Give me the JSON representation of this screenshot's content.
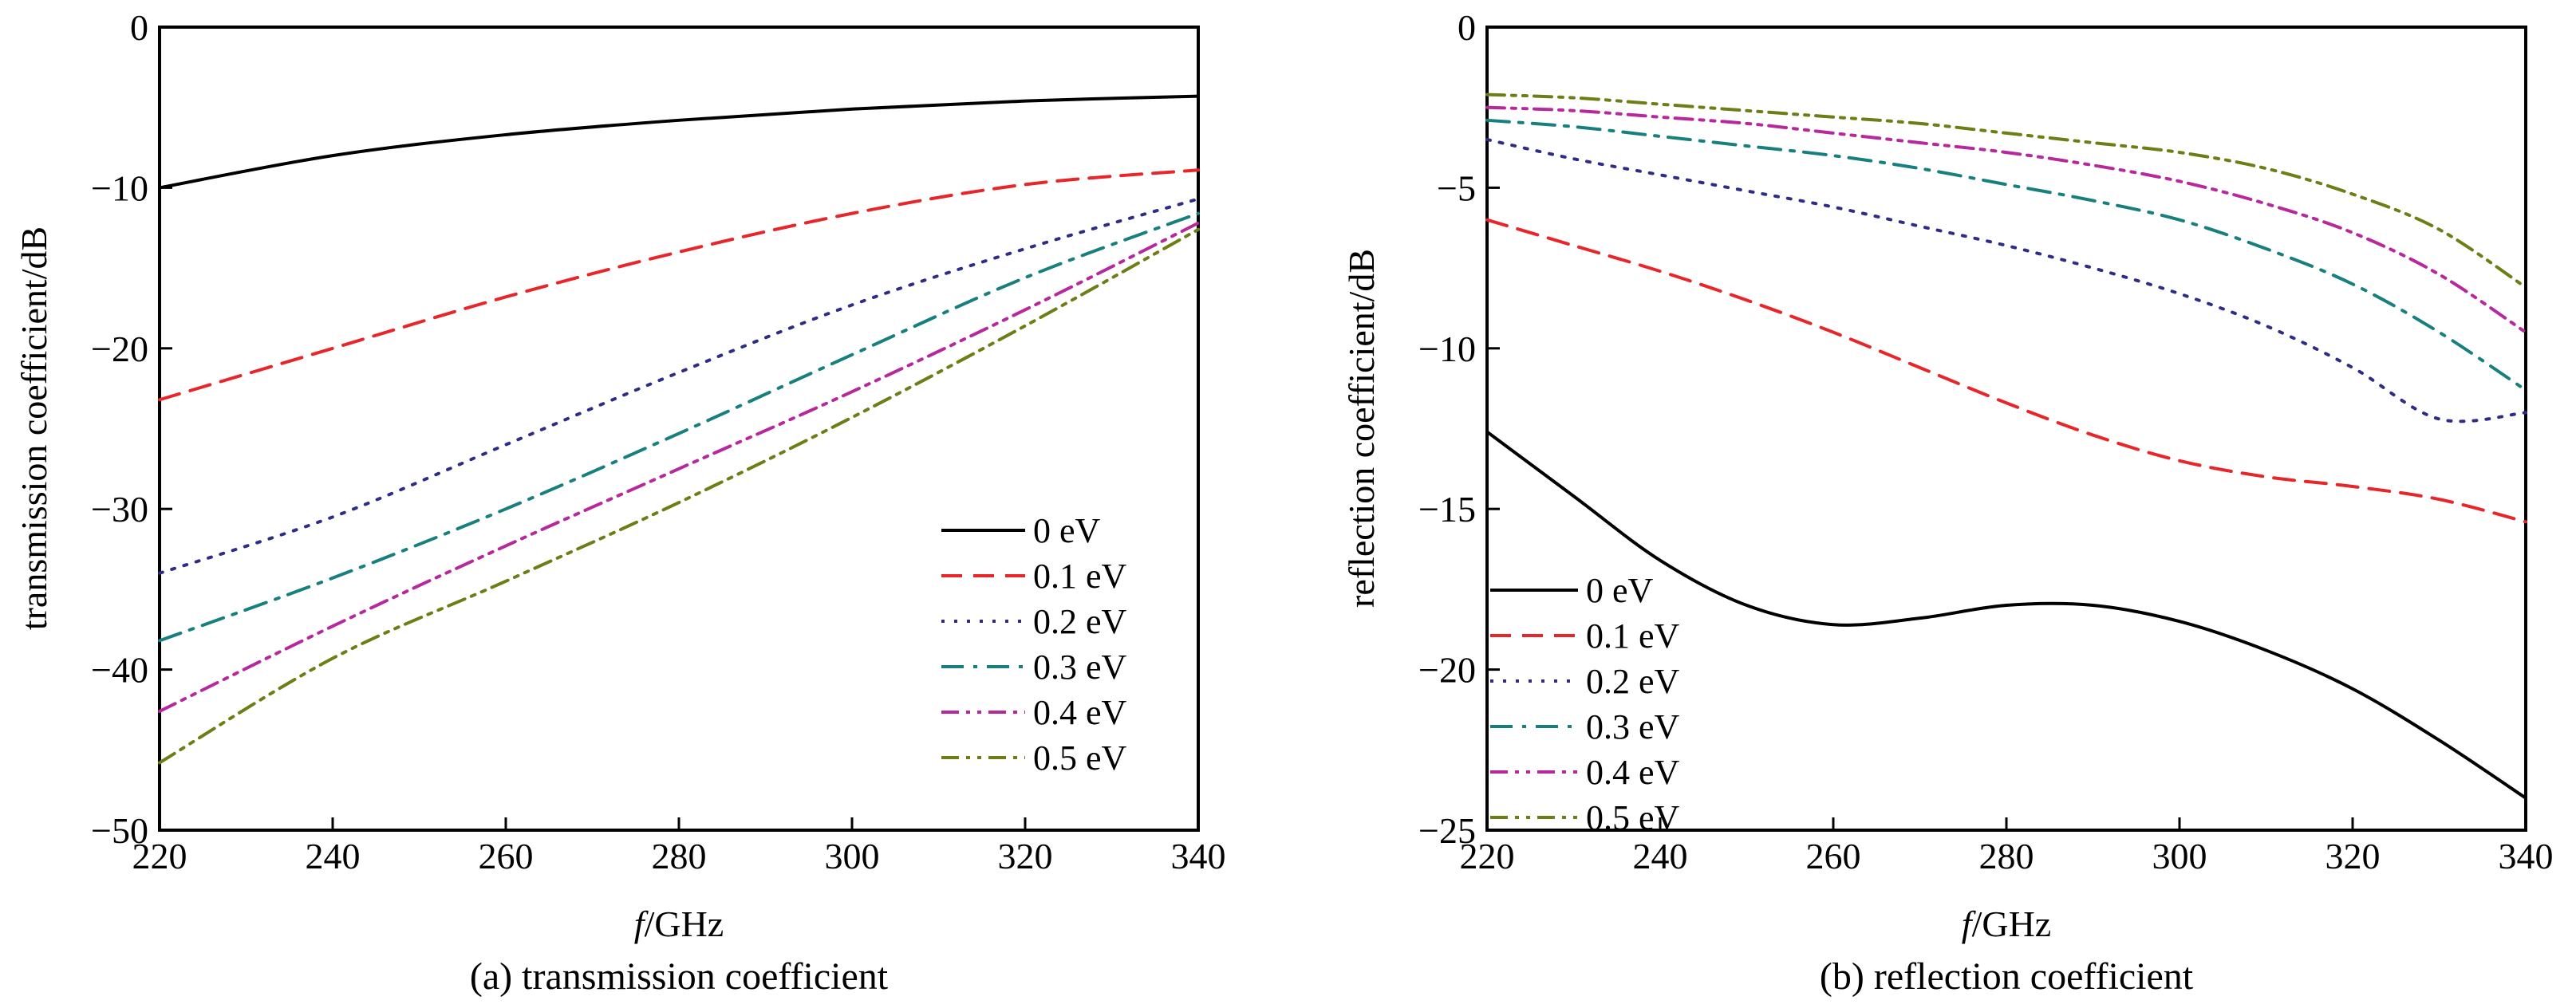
{
  "figure": {
    "captions": [
      "(a) transmission coefficient",
      "(b) reflection coefficient"
    ]
  },
  "chart_data": [
    {
      "type": "line",
      "caption": "(a) transmission coefficient",
      "xlabel_italic": "f",
      "xlabel_rest": "/GHz",
      "ylabel": "transmission coefficient/dB",
      "xlim": [
        220,
        340
      ],
      "ylim": [
        -50,
        0
      ],
      "xticks": [
        220,
        240,
        260,
        280,
        300,
        320,
        340
      ],
      "yticks": [
        0,
        -10,
        -20,
        -30,
        -40,
        -50
      ],
      "ytick_labels": [
        "0",
        "−10",
        "−20",
        "−30",
        "−40",
        "−50"
      ],
      "grid": false,
      "legend_position": "lower-right",
      "x": [
        220,
        240,
        260,
        280,
        300,
        320,
        340
      ],
      "series": [
        {
          "name": "0 eV",
          "color": "#000000",
          "dash": "solid",
          "values": [
            -10.0,
            -8.0,
            -6.7,
            -5.8,
            -5.1,
            -4.6,
            -4.3
          ]
        },
        {
          "name": "0.1 eV",
          "color": "#e8262a",
          "dash": "dash",
          "values": [
            -23.2,
            -20.0,
            -16.8,
            -14.0,
            -11.6,
            -9.8,
            -8.9
          ]
        },
        {
          "name": "0.2 eV",
          "color": "#2e2c86",
          "dash": "dot",
          "values": [
            -34.0,
            -30.5,
            -26.0,
            -21.5,
            -17.3,
            -13.8,
            -10.7
          ]
        },
        {
          "name": "0.3 eV",
          "color": "#17807e",
          "dash": "dashdot",
          "values": [
            -38.2,
            -34.3,
            -30.0,
            -25.3,
            -20.4,
            -15.6,
            -11.6
          ]
        },
        {
          "name": "0.4 eV",
          "color": "#b8289d",
          "dash": "dashdotdot",
          "values": [
            -42.6,
            -37.3,
            -32.3,
            -27.5,
            -22.7,
            -17.6,
            -12.2
          ]
        },
        {
          "name": "0.5 eV",
          "color": "#6e7d16",
          "dash": "dashdotdot",
          "values": [
            -45.8,
            -39.3,
            -34.5,
            -29.6,
            -24.3,
            -18.6,
            -12.6
          ]
        }
      ]
    },
    {
      "type": "line",
      "caption": "(b) reflection coefficient",
      "xlabel_italic": "f",
      "xlabel_rest": "/GHz",
      "ylabel": "reflection coefficient/dB",
      "xlim": [
        220,
        340
      ],
      "ylim": [
        -25,
        0
      ],
      "xticks": [
        220,
        240,
        260,
        280,
        300,
        320,
        340
      ],
      "yticks": [
        0,
        -5,
        -10,
        -15,
        -20,
        -25
      ],
      "ytick_labels": [
        "0",
        "−5",
        "−10",
        "−15",
        "−20",
        "−25"
      ],
      "grid": false,
      "legend_position": "lower-left",
      "x": [
        220,
        230,
        240,
        250,
        260,
        270,
        280,
        290,
        300,
        310,
        320,
        330,
        340
      ],
      "series": [
        {
          "name": "0 eV",
          "color": "#000000",
          "dash": "solid",
          "values": [
            -12.6,
            -14.6,
            -16.6,
            -18.0,
            -18.6,
            -18.4,
            -18.0,
            -18.0,
            -18.5,
            -19.4,
            -20.6,
            -22.2,
            -24.0
          ]
        },
        {
          "name": "0.1 eV",
          "color": "#e8262a",
          "dash": "dash",
          "values": [
            -6.0,
            -6.8,
            -7.6,
            -8.5,
            -9.5,
            -10.6,
            -11.7,
            -12.7,
            -13.5,
            -14.0,
            -14.3,
            -14.7,
            -15.4
          ]
        },
        {
          "name": "0.2 eV",
          "color": "#2e2c86",
          "dash": "dot",
          "values": [
            -3.5,
            -4.1,
            -4.6,
            -5.1,
            -5.6,
            -6.2,
            -6.8,
            -7.5,
            -8.3,
            -9.3,
            -10.6,
            -12.2,
            -12.0
          ]
        },
        {
          "name": "0.3 eV",
          "color": "#17807e",
          "dash": "dashdot",
          "values": [
            -2.9,
            -3.1,
            -3.4,
            -3.7,
            -4.0,
            -4.4,
            -4.9,
            -5.4,
            -6.0,
            -6.9,
            -8.0,
            -9.5,
            -11.3
          ]
        },
        {
          "name": "0.4 eV",
          "color": "#b8289d",
          "dash": "dashdotdot",
          "values": [
            -2.5,
            -2.6,
            -2.8,
            -3.0,
            -3.3,
            -3.6,
            -3.9,
            -4.3,
            -4.8,
            -5.5,
            -6.4,
            -7.7,
            -9.5
          ]
        },
        {
          "name": "0.5 eV",
          "color": "#6e7d16",
          "dash": "dashdotdot",
          "values": [
            -2.1,
            -2.2,
            -2.4,
            -2.6,
            -2.8,
            -3.0,
            -3.3,
            -3.6,
            -3.9,
            -4.4,
            -5.2,
            -6.3,
            -8.1
          ]
        }
      ]
    }
  ]
}
